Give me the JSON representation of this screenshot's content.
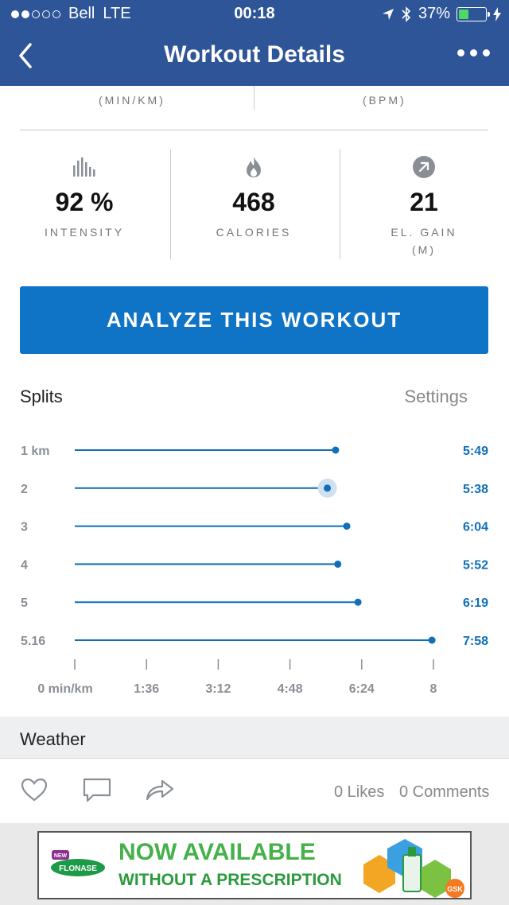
{
  "status_bar": {
    "carrier": "Bell",
    "network": "LTE",
    "time": "00:18",
    "battery": "37%",
    "battery_level": 0.37,
    "signal_bars": 2
  },
  "nav": {
    "title": "Workout Details",
    "back_icon": "chevron-left-icon",
    "more_icon": "more-dots-icon"
  },
  "top_units": {
    "left": "(MIN/KM)",
    "right": "(BPM)"
  },
  "stats": [
    {
      "icon": "bar-chart-icon",
      "value": "92 %",
      "label": "INTENSITY"
    },
    {
      "icon": "flame-icon",
      "value": "468",
      "label": "CALORIES"
    },
    {
      "icon": "arrow-up-right-icon",
      "value": "21",
      "label": "EL. GAIN",
      "sublabel": "(M)"
    }
  ],
  "analyze_button": "ANALYZE THIS WORKOUT",
  "splits": {
    "title": "Splits",
    "settings": "Settings"
  },
  "chart_data": {
    "type": "bar",
    "orientation": "horizontal",
    "categories": [
      "1 km",
      "2",
      "3",
      "4",
      "5",
      "5.16"
    ],
    "values_min_per_km": [
      5.8167,
      5.6333,
      6.0667,
      5.8667,
      6.3167,
      7.9667
    ],
    "value_labels": [
      "5:49",
      "5:38",
      "6:04",
      "5:52",
      "6:19",
      "7:58"
    ],
    "highlighted_index": 1,
    "x_ticks": [
      "0 min/km",
      "1:36",
      "3:12",
      "4:48",
      "6:24",
      "8"
    ],
    "xlim": [
      0,
      8
    ],
    "accent": "#0f6fb8"
  },
  "weather": {
    "title": "Weather"
  },
  "social": {
    "likes": "0 Likes",
    "comments": "0 Comments",
    "icons": [
      "heart-icon",
      "comment-icon",
      "share-icon"
    ]
  },
  "ad": {
    "brand": "FLONASE",
    "brand_top": "NEW",
    "line1": "NOW AVAILABLE",
    "line2": "WITHOUT A PRESCRIPTION",
    "corner": "GSK"
  },
  "colors": {
    "nav_bg": "#2e5597",
    "button_bg": "#0f73c6",
    "accent": "#0f6fb8"
  }
}
